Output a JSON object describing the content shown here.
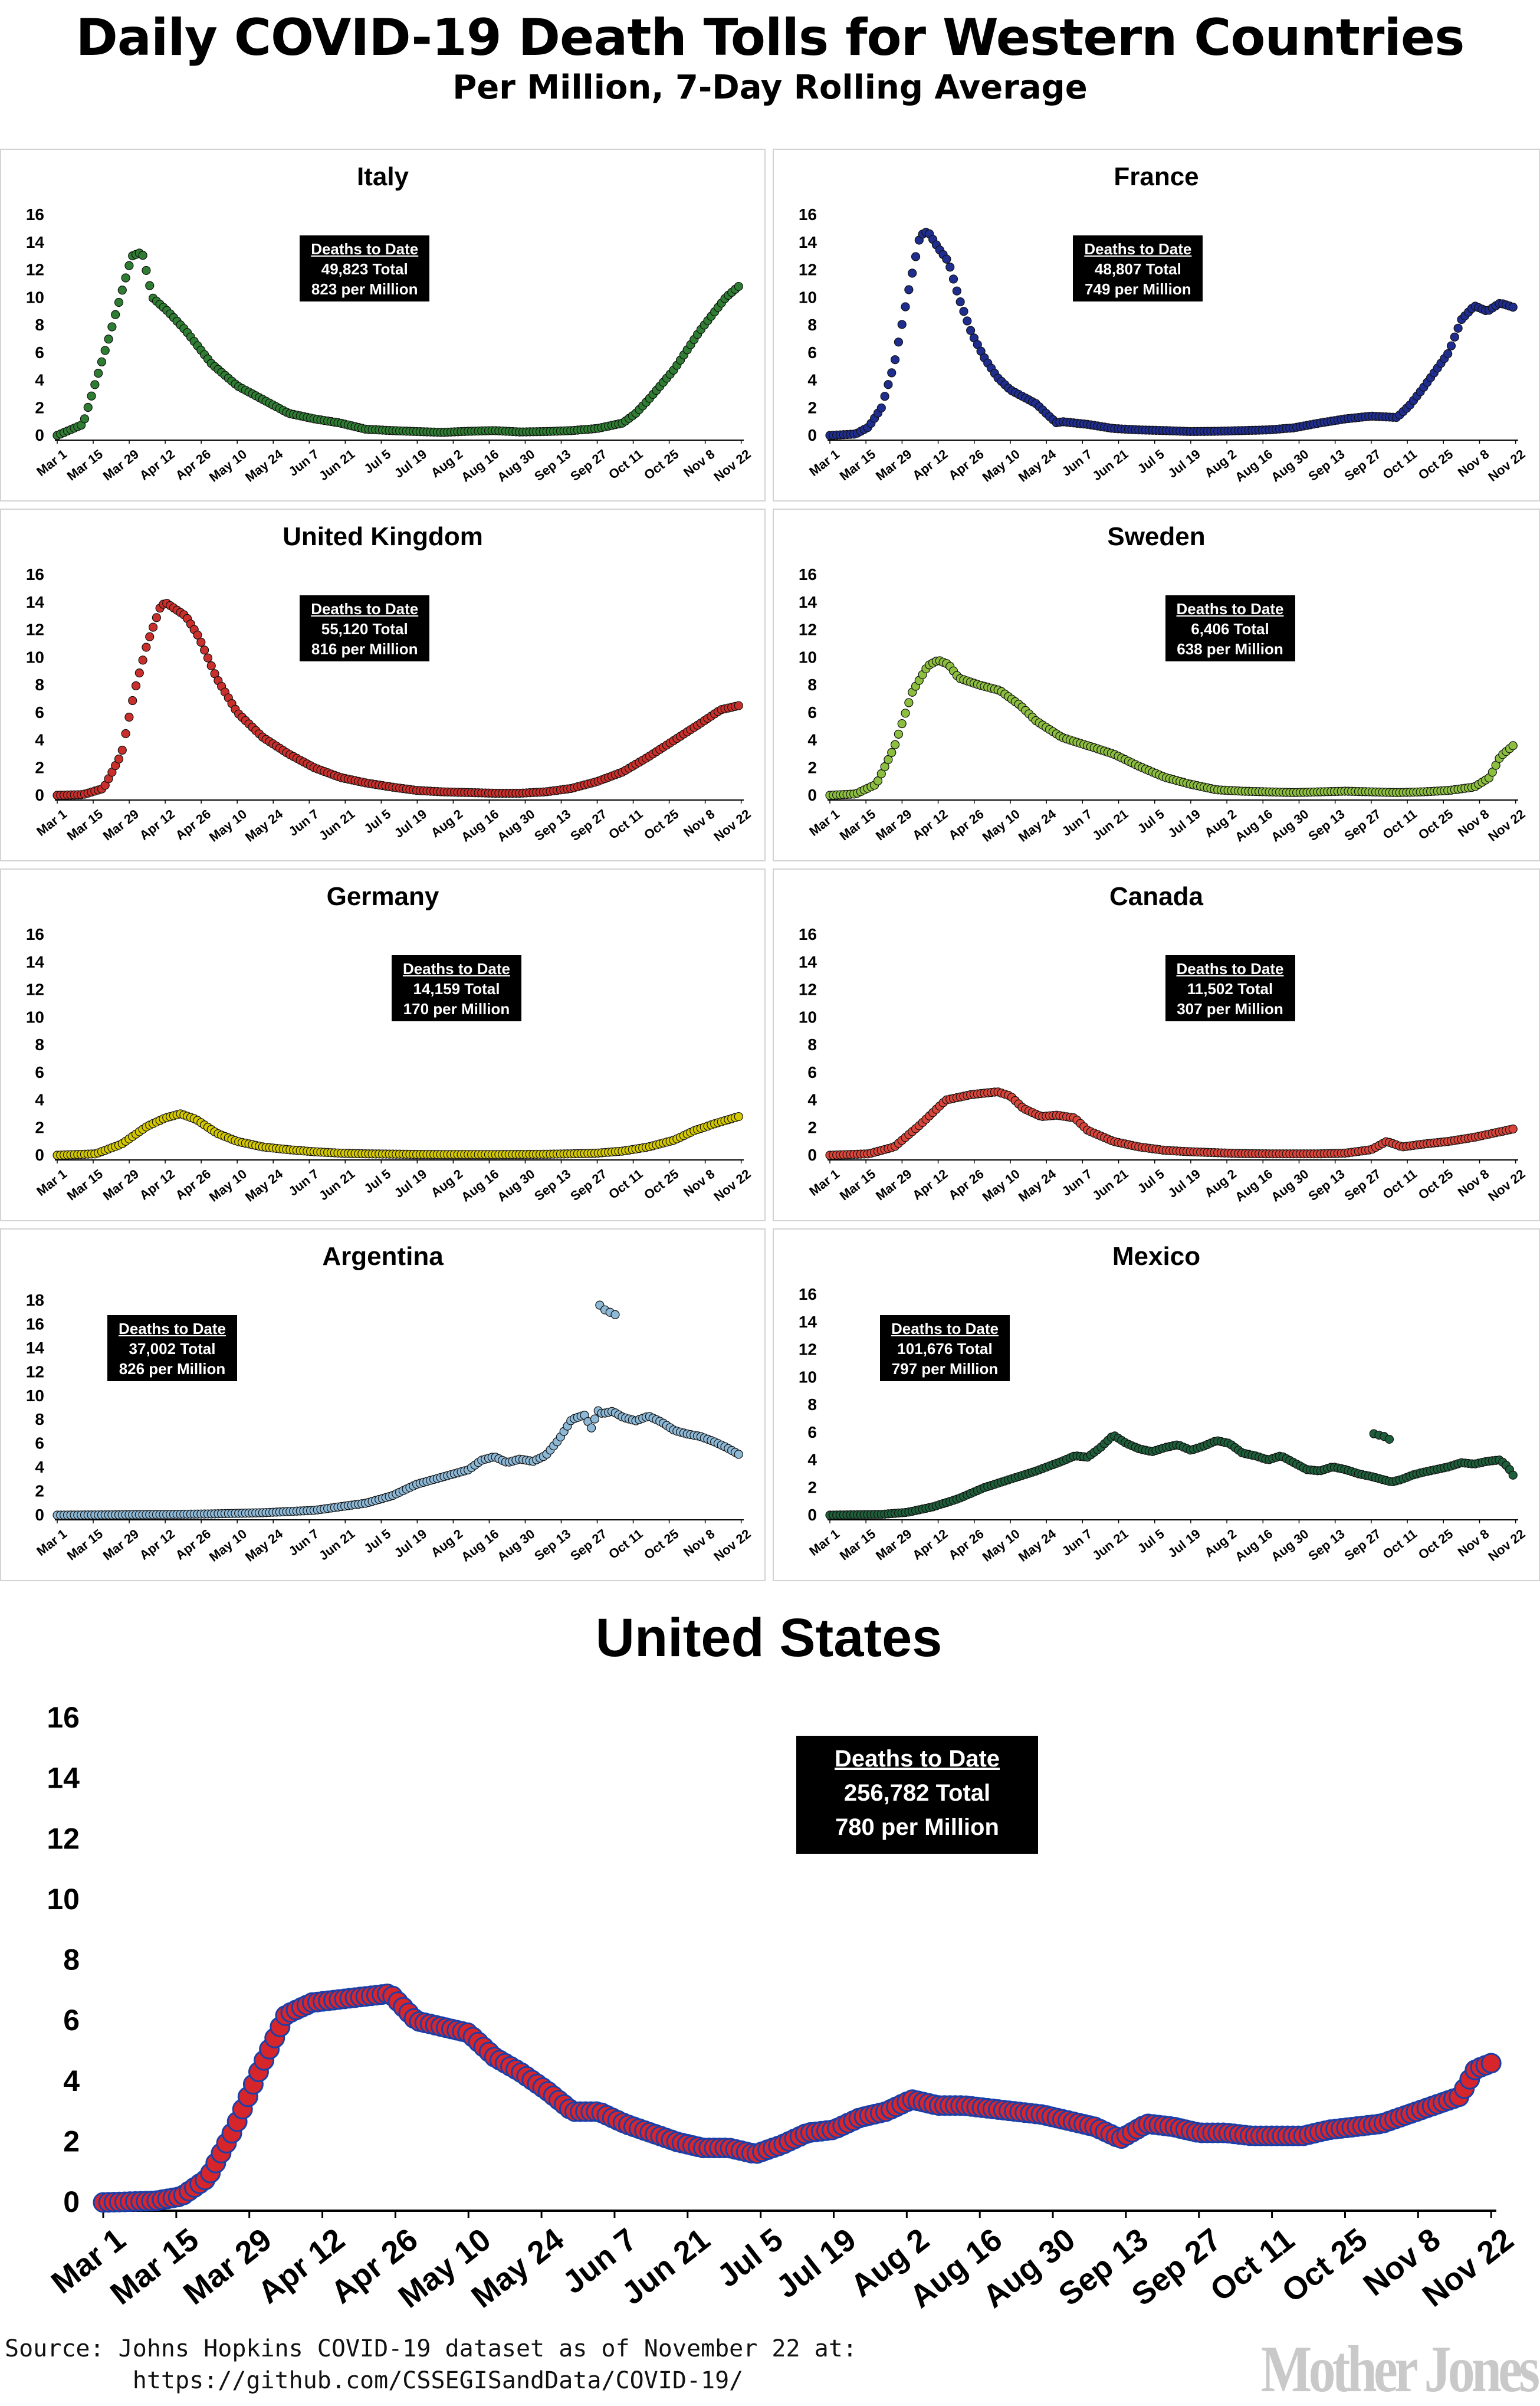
{
  "header": {
    "title": "Daily COVID-19 Death Tolls for Western Countries",
    "subtitle": "Per Million, 7-Day Rolling Average"
  },
  "footer": {
    "source": "Source: Johns Hopkins COVID-19 dataset as of November 22 at:\n         https://github.com/CSSEGISandData/COVID-19/",
    "brand": "Mother Jones"
  },
  "colors": {
    "italy": "#2e7d32",
    "france": "#1f2d8f",
    "uk": "#c9302c",
    "sweden": "#8cbf3f",
    "germany": "#d4c800",
    "canada": "#d9453a",
    "argentina": "#8db8d6",
    "mexico": "#1e5e3a",
    "us_fill": "#d7262b",
    "us_edge": "#1b3fa8"
  },
  "chart_data": [
    {
      "id": "italy",
      "type": "scatter",
      "title": "Italy",
      "callout": {
        "header": "Deaths to Date",
        "total": "49,823 Total",
        "per_million": "823 per Million"
      },
      "x_ticks": [
        "Mar 1",
        "Mar 15",
        "Mar 29",
        "Apr 12",
        "Apr 26",
        "May 10",
        "May 24",
        "Jun 7",
        "Jun 21",
        "Jul 5",
        "Jul 19",
        "Aug 2",
        "Aug 16",
        "Aug 30",
        "Sep 13",
        "Sep 27",
        "Oct 11",
        "Oct 25",
        "Nov 8",
        "Nov 22"
      ],
      "ylim": [
        0,
        16
      ],
      "y_ticks": [
        0,
        2,
        4,
        6,
        8,
        10,
        12,
        14,
        16
      ],
      "x_days": [
        0,
        10,
        20,
        26,
        29,
        33,
        37,
        43,
        50,
        60,
        70,
        80,
        90,
        100,
        110,
        120,
        130,
        140,
        150,
        160,
        170,
        180,
        190,
        200,
        210,
        220,
        225,
        230,
        240,
        250,
        260,
        265
      ],
      "values": [
        0,
        0.8,
        7,
        11,
        13,
        13.3,
        10,
        9,
        7.6,
        5.2,
        3.6,
        2.6,
        1.6,
        1.2,
        0.9,
        0.45,
        0.35,
        0.28,
        0.22,
        0.3,
        0.35,
        0.25,
        0.28,
        0.35,
        0.5,
        0.9,
        1.6,
        2.6,
        4.8,
        7.6,
        10,
        10.8
      ]
    },
    {
      "id": "france",
      "type": "scatter",
      "title": "France",
      "callout": {
        "header": "Deaths to Date",
        "total": "48,807 Total",
        "per_million": "749 per Million"
      },
      "x_ticks": [
        "Mar 1",
        "Mar 15",
        "Mar 29",
        "Apr 12",
        "Apr 26",
        "May 10",
        "May 24",
        "Jun 7",
        "Jun 21",
        "Jul 5",
        "Jul 19",
        "Aug 2",
        "Aug 16",
        "Aug 30",
        "Sep 13",
        "Sep 27",
        "Oct 11",
        "Oct 25",
        "Nov 8",
        "Nov 22"
      ],
      "ylim": [
        0,
        16
      ],
      "y_ticks": [
        0,
        2,
        4,
        6,
        8,
        10,
        12,
        14,
        16
      ],
      "x_days": [
        0,
        10,
        15,
        20,
        25,
        30,
        35,
        38,
        42,
        46,
        50,
        55,
        60,
        65,
        70,
        75,
        80,
        85,
        88,
        90,
        100,
        110,
        120,
        130,
        140,
        150,
        160,
        170,
        180,
        190,
        200,
        210,
        220,
        225,
        230,
        240,
        245,
        250,
        255,
        260,
        265
      ],
      "values": [
        0,
        0.1,
        0.6,
        2,
        5.2,
        10,
        14.5,
        14.8,
        13.6,
        12.6,
        10,
        7.4,
        5.6,
        4.2,
        3.3,
        2.8,
        2.3,
        1.4,
        0.9,
        1.0,
        0.8,
        0.5,
        0.4,
        0.35,
        0.28,
        0.3,
        0.35,
        0.4,
        0.55,
        0.9,
        1.2,
        1.4,
        1.3,
        2.2,
        3.4,
        6,
        8.4,
        9.4,
        9.0,
        9.6,
        9.3
      ]
    },
    {
      "id": "uk",
      "type": "scatter",
      "title": "United Kingdom",
      "callout": {
        "header": "Deaths to Date",
        "total": "55,120 Total",
        "per_million": "816 per Million"
      },
      "x_ticks": [
        "Mar 1",
        "Mar 15",
        "Mar 29",
        "Apr 12",
        "Apr 26",
        "May 10",
        "May 24",
        "Jun 7",
        "Jun 21",
        "Jul 5",
        "Jul 19",
        "Aug 2",
        "Aug 16",
        "Aug 30",
        "Sep 13",
        "Sep 27",
        "Oct 11",
        "Oct 25",
        "Nov 8",
        "Nov 22"
      ],
      "ylim": [
        0,
        16
      ],
      "y_ticks": [
        0,
        2,
        4,
        6,
        8,
        10,
        12,
        14,
        16
      ],
      "x_days": [
        0,
        10,
        18,
        25,
        30,
        35,
        40,
        42,
        46,
        50,
        55,
        62,
        70,
        80,
        90,
        100,
        110,
        120,
        130,
        140,
        150,
        160,
        170,
        180,
        190,
        200,
        210,
        220,
        230,
        240,
        250,
        258,
        265
      ],
      "values": [
        0,
        0.05,
        0.5,
        3,
        7.5,
        11,
        13.6,
        14,
        13.5,
        13,
        11.5,
        8.5,
        6,
        4.2,
        3,
        2,
        1.3,
        0.9,
        0.6,
        0.35,
        0.25,
        0.2,
        0.15,
        0.15,
        0.25,
        0.5,
        1,
        1.7,
        2.8,
        4,
        5.2,
        6.2,
        6.5
      ]
    },
    {
      "id": "sweden",
      "type": "scatter",
      "title": "Sweden",
      "callout": {
        "header": "Deaths to Date",
        "total": "6,406 Total",
        "per_million": "638 per Million"
      },
      "x_ticks": [
        "Mar 1",
        "Mar 15",
        "Mar 29",
        "Apr 12",
        "Apr 26",
        "May 10",
        "May 24",
        "Jun 7",
        "Jun 21",
        "Jul 5",
        "Jul 19",
        "Aug 2",
        "Aug 16",
        "Aug 30",
        "Sep 13",
        "Sep 27",
        "Oct 11",
        "Oct 25",
        "Nov 8",
        "Nov 22"
      ],
      "ylim": [
        0,
        16
      ],
      "y_ticks": [
        0,
        2,
        4,
        6,
        8,
        10,
        12,
        14,
        16
      ],
      "x_days": [
        0,
        10,
        18,
        25,
        32,
        38,
        42,
        46,
        50,
        58,
        66,
        74,
        80,
        90,
        100,
        110,
        120,
        130,
        140,
        150,
        160,
        170,
        180,
        190,
        200,
        210,
        220,
        230,
        240,
        250,
        256,
        260,
        265
      ],
      "values": [
        0,
        0.1,
        0.8,
        3.5,
        7.5,
        9.4,
        9.8,
        9.5,
        8.5,
        8,
        7.6,
        6.5,
        5.4,
        4.2,
        3.6,
        3,
        2.1,
        1.3,
        0.8,
        0.4,
        0.3,
        0.25,
        0.2,
        0.25,
        0.3,
        0.25,
        0.2,
        0.25,
        0.35,
        0.6,
        1.3,
        2.8,
        3.6
      ]
    },
    {
      "id": "germany",
      "type": "scatter",
      "title": "Germany",
      "callout": {
        "header": "Deaths to Date",
        "total": "14,159 Total",
        "per_million": "170 per Million"
      },
      "x_ticks": [
        "Mar 1",
        "Mar 15",
        "Mar 29",
        "Apr 12",
        "Apr 26",
        "May 10",
        "May 24",
        "Jun 7",
        "Jun 21",
        "Jul 5",
        "Jul 19",
        "Aug 2",
        "Aug 16",
        "Aug 30",
        "Sep 13",
        "Sep 27",
        "Oct 11",
        "Oct 25",
        "Nov 8",
        "Nov 22"
      ],
      "ylim": [
        0,
        16
      ],
      "y_ticks": [
        0,
        2,
        4,
        6,
        8,
        10,
        12,
        14,
        16
      ],
      "x_days": [
        0,
        15,
        25,
        35,
        42,
        48,
        54,
        62,
        70,
        80,
        90,
        100,
        110,
        120,
        130,
        140,
        150,
        160,
        170,
        180,
        190,
        200,
        210,
        220,
        230,
        240,
        248,
        256,
        265
      ],
      "values": [
        0,
        0.1,
        0.8,
        2.1,
        2.7,
        3,
        2.6,
        1.6,
        1,
        0.6,
        0.4,
        0.25,
        0.15,
        0.1,
        0.08,
        0.06,
        0.05,
        0.05,
        0.05,
        0.06,
        0.07,
        0.1,
        0.15,
        0.3,
        0.6,
        1.1,
        1.8,
        2.3,
        2.8
      ]
    },
    {
      "id": "canada",
      "type": "scatter",
      "title": "Canada",
      "callout": {
        "header": "Deaths to Date",
        "total": "11,502 Total",
        "per_million": "307 per Million"
      },
      "x_ticks": [
        "Mar 1",
        "Mar 15",
        "Mar 29",
        "Apr 12",
        "Apr 26",
        "May 10",
        "May 24",
        "Jun 7",
        "Jun 21",
        "Jul 5",
        "Jul 19",
        "Aug 2",
        "Aug 16",
        "Aug 30",
        "Sep 13",
        "Sep 27",
        "Oct 11",
        "Oct 25",
        "Nov 8",
        "Nov 22"
      ],
      "ylim": [
        0,
        16
      ],
      "y_ticks": [
        0,
        2,
        4,
        6,
        8,
        10,
        12,
        14,
        16
      ],
      "x_days": [
        0,
        15,
        25,
        35,
        45,
        55,
        65,
        70,
        75,
        82,
        88,
        95,
        100,
        110,
        120,
        130,
        140,
        150,
        160,
        170,
        180,
        190,
        200,
        210,
        216,
        222,
        230,
        240,
        250,
        260,
        265
      ],
      "values": [
        0,
        0.1,
        0.6,
        2.2,
        4,
        4.4,
        4.6,
        4.3,
        3.4,
        2.8,
        2.9,
        2.7,
        1.8,
        1,
        0.6,
        0.35,
        0.25,
        0.18,
        0.12,
        0.1,
        0.1,
        0.1,
        0.15,
        0.4,
        1.0,
        0.6,
        0.8,
        1.0,
        1.3,
        1.7,
        1.9
      ]
    },
    {
      "id": "argentina",
      "type": "scatter",
      "title": "Argentina",
      "callout": {
        "header": "Deaths to Date",
        "total": "37,002 Total",
        "per_million": "826 per Million"
      },
      "x_ticks": [
        "Mar 1",
        "Mar 15",
        "Mar 29",
        "Apr 12",
        "Apr 26",
        "May 10",
        "May 24",
        "Jun 7",
        "Jun 21",
        "Jul 5",
        "Jul 19",
        "Aug 2",
        "Aug 16",
        "Aug 30",
        "Sep 13",
        "Sep 27",
        "Oct 11",
        "Oct 25",
        "Nov 8",
        "Nov 22"
      ],
      "ylim": [
        0,
        18
      ],
      "y_ticks": [
        0,
        2,
        4,
        6,
        8,
        10,
        12,
        14,
        16,
        18
      ],
      "x_days": [
        0,
        20,
        40,
        60,
        80,
        100,
        110,
        120,
        130,
        140,
        150,
        160,
        165,
        170,
        175,
        180,
        185,
        190,
        195,
        200,
        205,
        208,
        210,
        212,
        216,
        220,
        225,
        230,
        235,
        240,
        245,
        250,
        255,
        260,
        265
      ],
      "values": [
        0,
        0.02,
        0.05,
        0.1,
        0.2,
        0.4,
        0.7,
        1,
        1.6,
        2.6,
        3.2,
        3.8,
        4.6,
        4.9,
        4.4,
        4.7,
        4.5,
        5,
        6.3,
        8,
        8.4,
        7.2,
        8.8,
        8.5,
        8.7,
        8.2,
        7.9,
        8.3,
        7.8,
        7.1,
        6.8,
        6.6,
        6.2,
        5.7,
        5.1
      ],
      "outliers": {
        "x_days": [
          211,
          213,
          215,
          217
        ],
        "values": [
          17.6,
          17.2,
          17.0,
          16.8
        ]
      }
    },
    {
      "id": "mexico",
      "type": "scatter",
      "title": "Mexico",
      "callout": {
        "header": "Deaths to Date",
        "total": "101,676 Total",
        "per_million": "797 per Million"
      },
      "x_ticks": [
        "Mar 1",
        "Mar 15",
        "Mar 29",
        "Apr 12",
        "Apr 26",
        "May 10",
        "May 24",
        "Jun 7",
        "Jun 21",
        "Jul 5",
        "Jul 19",
        "Aug 2",
        "Aug 16",
        "Aug 30",
        "Sep 13",
        "Sep 27",
        "Oct 11",
        "Oct 25",
        "Nov 8",
        "Nov 22"
      ],
      "ylim": [
        0,
        16
      ],
      "y_ticks": [
        0,
        2,
        4,
        6,
        8,
        10,
        12,
        14,
        16
      ],
      "x_days": [
        0,
        20,
        30,
        40,
        50,
        60,
        70,
        80,
        90,
        95,
        100,
        105,
        110,
        115,
        120,
        125,
        130,
        135,
        140,
        145,
        150,
        155,
        160,
        165,
        170,
        175,
        180,
        185,
        190,
        195,
        200,
        205,
        210,
        218,
        222,
        226,
        230,
        235,
        240,
        245,
        250,
        255,
        260,
        263,
        265
      ],
      "values": [
        0,
        0.05,
        0.2,
        0.6,
        1.2,
        2,
        2.6,
        3.2,
        3.9,
        4.3,
        4.2,
        4.9,
        5.8,
        5.2,
        4.8,
        4.6,
        4.9,
        5.1,
        4.7,
        5.0,
        5.4,
        5.2,
        4.5,
        4.3,
        4.0,
        4.3,
        3.8,
        3.3,
        3.2,
        3.5,
        3.3,
        3.0,
        2.8,
        2.4,
        2.6,
        2.9,
        3.1,
        3.3,
        3.5,
        3.8,
        3.7,
        3.9,
        4.0,
        3.5,
        2.9
      ],
      "outliers": {
        "x_days": [
          211,
          213,
          215,
          217
        ],
        "values": [
          5.9,
          5.8,
          5.7,
          5.5
        ]
      }
    },
    {
      "id": "united-states",
      "type": "scatter",
      "title": "United States",
      "callout": {
        "header": "Deaths to Date",
        "total": "256,782 Total",
        "per_million": "780 per Million"
      },
      "x_ticks": [
        "Mar 1",
        "Mar 15",
        "Mar 29",
        "Apr 12",
        "Apr 26",
        "May 10",
        "May 24",
        "Jun 7",
        "Jun 21",
        "Jul 5",
        "Jul 19",
        "Aug 2",
        "Aug 16",
        "Aug 30",
        "Sep 13",
        "Sep 27",
        "Oct 11",
        "Oct 25",
        "Nov 8",
        "Nov 22"
      ],
      "ylim": [
        0,
        16
      ],
      "y_ticks": [
        0,
        2,
        4,
        6,
        8,
        10,
        12,
        14,
        16
      ],
      "x_days": [
        0,
        10,
        15,
        20,
        25,
        30,
        35,
        40,
        45,
        50,
        55,
        60,
        65,
        70,
        75,
        80,
        85,
        90,
        95,
        100,
        105,
        110,
        115,
        120,
        125,
        130,
        135,
        140,
        145,
        150,
        155,
        160,
        165,
        170,
        175,
        180,
        185,
        190,
        195,
        200,
        205,
        210,
        215,
        220,
        225,
        230,
        235,
        240,
        245,
        250,
        255,
        260,
        263,
        266
      ],
      "values": [
        0,
        0.05,
        0.2,
        0.8,
        2.4,
        4.4,
        6.2,
        6.6,
        6.7,
        6.8,
        6.9,
        6.0,
        5.8,
        5.6,
        4.8,
        4.3,
        3.7,
        3.0,
        3.0,
        2.6,
        2.3,
        2.0,
        1.8,
        1.8,
        1.6,
        1.9,
        2.3,
        2.4,
        2.8,
        3.0,
        3.4,
        3.2,
        3.2,
        3.1,
        3.0,
        2.9,
        2.7,
        2.5,
        2.1,
        2.6,
        2.5,
        2.3,
        2.3,
        2.2,
        2.2,
        2.2,
        2.4,
        2.5,
        2.6,
        2.9,
        3.2,
        3.5,
        4.4,
        4.6
      ]
    }
  ]
}
